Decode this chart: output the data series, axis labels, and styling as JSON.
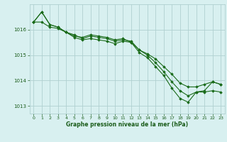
{
  "bg_color": "#d8f0f0",
  "grid_color": "#b0d0d0",
  "line_color": "#1a6b1a",
  "marker_color": "#1a6b1a",
  "text_color": "#1a5c1a",
  "title": "Graphe pression niveau de la mer (hPa)",
  "xlim": [
    -0.5,
    23.5
  ],
  "ylim": [
    1012.7,
    1017.0
  ],
  "yticks": [
    1013,
    1014,
    1015,
    1016
  ],
  "xticks": [
    0,
    1,
    2,
    3,
    4,
    5,
    6,
    7,
    8,
    9,
    10,
    11,
    12,
    13,
    14,
    15,
    16,
    17,
    18,
    19,
    20,
    21,
    22,
    23
  ],
  "series": [
    [
      1016.3,
      1016.7,
      1016.2,
      1016.1,
      1015.9,
      1015.8,
      1015.65,
      1015.75,
      1015.7,
      1015.65,
      1015.55,
      1015.6,
      1015.55,
      1015.2,
      1015.05,
      1014.85,
      1014.55,
      1014.25,
      1013.9,
      1013.75,
      1013.75,
      1013.85,
      1013.95,
      1013.85
    ],
    [
      1016.3,
      1016.3,
      1016.1,
      1016.05,
      1015.9,
      1015.7,
      1015.6,
      1015.65,
      1015.6,
      1015.55,
      1015.45,
      1015.55,
      1015.5,
      1015.2,
      1015.0,
      1014.7,
      1014.35,
      1013.95,
      1013.6,
      1013.4,
      1013.55,
      1013.55,
      1013.6,
      1013.55
    ],
    [
      1016.3,
      1016.7,
      1016.2,
      1016.1,
      1015.9,
      1015.75,
      1015.7,
      1015.8,
      1015.75,
      1015.7,
      1015.6,
      1015.65,
      1015.5,
      1015.1,
      1014.9,
      1014.55,
      1014.2,
      1013.7,
      1013.3,
      1013.15,
      1013.55,
      1013.6,
      1013.95,
      1013.85
    ]
  ]
}
